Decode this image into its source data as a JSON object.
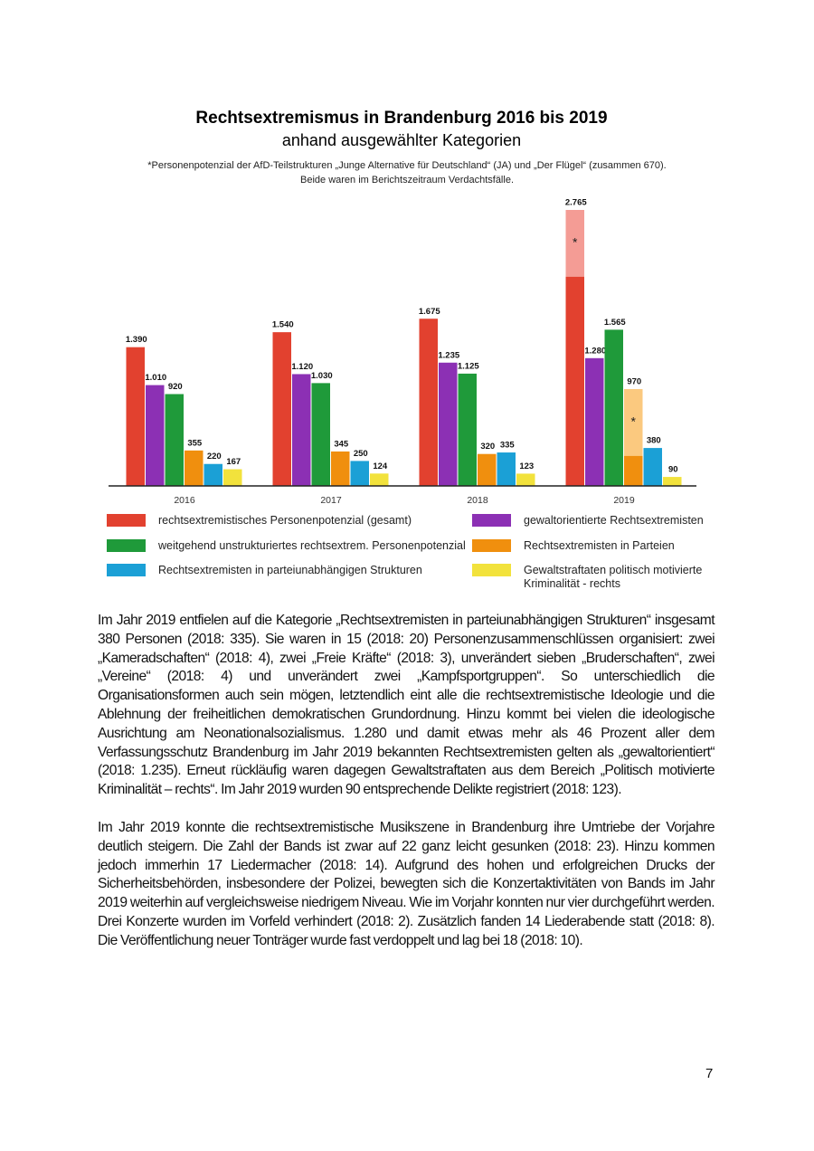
{
  "chart_data": {
    "type": "bar",
    "title": "Rechtsextremismus in Brandenburg 2016 bis 2019",
    "subtitle": "anhand ausgewählter Kategorien",
    "note": "*Personenpotenzial der AfD-Teilstrukturen „Junge Alternative für Deutschland“ (JA) und „Der Flügel“ (zusammen 670). Beide waren im Berichtszeitraum Verdachtsfälle.",
    "categories": [
      "2016",
      "2017",
      "2018",
      "2019"
    ],
    "highlight_value": 670,
    "highlight_label": "*",
    "series": [
      {
        "name": "rechtsextremistisches Personenpotenzial (gesamt)",
        "color": "#e2412f",
        "highlight_color": "#f49c95",
        "values": [
          1390,
          1540,
          1675,
          2765
        ],
        "value_labels": [
          "1.390",
          "1.540",
          "1.675",
          "2.765"
        ]
      },
      {
        "name": "gewaltorientierte Rechtsextremisten",
        "color": "#8c30b4",
        "values": [
          1010,
          1120,
          1235,
          1280
        ],
        "value_labels": [
          "1.010",
          "1.120",
          "1.235",
          "1.280"
        ]
      },
      {
        "name": "weitgehend unstrukturiertes rechtsextrem. Personenpotenzial",
        "color": "#1f9a3a",
        "values": [
          920,
          1030,
          1125,
          1565
        ],
        "value_labels": [
          "920",
          "1.030",
          "1.125",
          "1.565"
        ]
      },
      {
        "name": "Rechtsextremisten in Parteien",
        "color": "#f08f0e",
        "highlight_color": "#fbc97f",
        "values": [
          355,
          345,
          320,
          970
        ],
        "value_labels": [
          "355",
          "345",
          "320",
          "970"
        ]
      },
      {
        "name": "Rechtsextremisten in parteiunabhängigen Strukturen",
        "color": "#1ba0d6",
        "values": [
          220,
          250,
          335,
          380
        ],
        "value_labels": [
          "220",
          "250",
          "335",
          "380"
        ]
      },
      {
        "name": "Gewaltstraftaten politisch motivierte Kriminalität - rechts",
        "color": "#f2e23c",
        "values": [
          167,
          124,
          123,
          90
        ],
        "value_labels": [
          "167",
          "124",
          "123",
          "90"
        ]
      }
    ]
  },
  "text": {
    "paragraphs": [
      "Im Jahr 2019 entfielen auf die Kategorie „Rechtsextremisten in parteiunabhängigen Strukturen“ insgesamt 380 Personen (2018: 335). Sie waren in 15 (2018: 20) Personenzusammenschlüssen organisiert: zwei „Kameradschaften“ (2018: 4), zwei „Freie Kräfte“ (2018: 3), unverändert sieben „Bruderschaften“, zwei „Vereine“ (2018: 4) und unverändert zwei „Kampfsportgruppen“. So unterschiedlich die Organisationsformen auch sein mögen, letztendlich eint alle die rechtsextremistische Ideologie und die Ablehnung der freiheitlichen demokratischen Grundordnung. Hinzu kommt bei vielen die ideologische Ausrichtung am Neonationalsozialismus. 1.280 und damit etwas mehr als 46 Prozent aller dem Verfassungsschutz Brandenburg im Jahr 2019 bekannten Rechtsextremisten gelten als „gewaltorientiert“ (2018: 1.235). Erneut rückläufig waren dagegen Gewaltstraftaten aus dem Bereich „Politisch motivierte Kriminalität – rechts“. Im Jahr 2019 wurden 90 entsprechende Delikte registriert (2018: 123).",
      "Im Jahr 2019 konnte die rechtsextremistische Musikszene in Brandenburg ihre Umtriebe der Vorjahre deutlich steigern. Die Zahl der Bands ist zwar auf 22 ganz leicht gesunken (2018: 23). Hinzu kommen jedoch immerhin 17 Liedermacher (2018: 14). Aufgrund des hohen und erfolgreichen Drucks der Sicherheitsbehörden, insbesondere der Polizei, bewegten sich die Konzertaktivitäten von Bands im Jahr 2019 weiterhin auf vergleichsweise niedrigem Niveau. Wie im Vorjahr konnten nur vier durchgeführt werden. Drei Konzerte wurden im Vorfeld verhindert (2018: 2). Zusätzlich fanden 14 Liederabende statt (2018: 8). Die Veröffentlichung neuer Tonträger wurde fast verdoppelt und lag bei 18 (2018: 10)."
    ]
  },
  "page_number": "7"
}
